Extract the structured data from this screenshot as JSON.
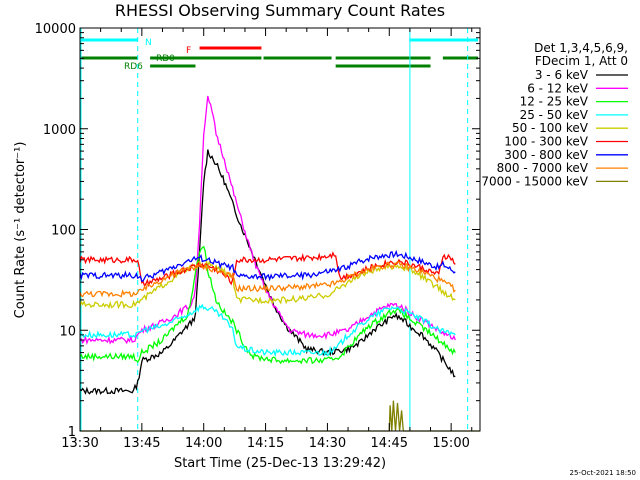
{
  "chart_data": {
    "type": "line",
    "title": "RHESSI Observing Summary Count Rates",
    "xlabel": "Start Time (25-Dec-13 13:29:42)",
    "ylabel": "Count Rate (s⁻¹ detector⁻¹)",
    "y_scale": "log",
    "ylim": [
      1,
      10000
    ],
    "xlim_minutes_after_1330": [
      0,
      97
    ],
    "x_ticks": [
      {
        "t": 0,
        "label": "13:30"
      },
      {
        "t": 15,
        "label": "13:45"
      },
      {
        "t": 30,
        "label": "14:00"
      },
      {
        "t": 45,
        "label": "14:15"
      },
      {
        "t": 60,
        "label": "14:30"
      },
      {
        "t": 75,
        "label": "14:45"
      },
      {
        "t": 90,
        "label": "15:00"
      }
    ],
    "y_ticks": [
      {
        "v": 1,
        "label": "1"
      },
      {
        "v": 10,
        "label": "10"
      },
      {
        "v": 100,
        "label": "100"
      },
      {
        "v": 1000,
        "label": "1000"
      },
      {
        "v": 10000,
        "label": "10000"
      }
    ],
    "legend_header": [
      "Det 1,3,4,5,6,9,",
      "FDecim 1, Att 0"
    ],
    "legend_position": "right",
    "series": [
      {
        "name": "3 - 6 keV",
        "color": "#000000",
        "points": [
          [
            0,
            2.5
          ],
          [
            13,
            2.5
          ],
          [
            14,
            3
          ],
          [
            15,
            5
          ],
          [
            20,
            6
          ],
          [
            23,
            8
          ],
          [
            25,
            10
          ],
          [
            27,
            12
          ],
          [
            28,
            14
          ],
          [
            29,
            60
          ],
          [
            30,
            300
          ],
          [
            31,
            600
          ],
          [
            33,
            450
          ],
          [
            35,
            300
          ],
          [
            37,
            180
          ],
          [
            39,
            110
          ],
          [
            41,
            70
          ],
          [
            43,
            45
          ],
          [
            45,
            28
          ],
          [
            47,
            18
          ],
          [
            50,
            11
          ],
          [
            53,
            8
          ],
          [
            55,
            6.5
          ],
          [
            60,
            6
          ],
          [
            65,
            6.5
          ],
          [
            68,
            7.5
          ],
          [
            71,
            10
          ],
          [
            74,
            12
          ],
          [
            76,
            14
          ],
          [
            78,
            13
          ],
          [
            80,
            11
          ],
          [
            83,
            9
          ],
          [
            86,
            6.5
          ],
          [
            89,
            4.5
          ],
          [
            91,
            3.5
          ]
        ]
      },
      {
        "name": "6 - 12 keV",
        "color": "#ff00ff",
        "points": [
          [
            0,
            8
          ],
          [
            13,
            8
          ],
          [
            14,
            9
          ],
          [
            15,
            10
          ],
          [
            20,
            12
          ],
          [
            23,
            14
          ],
          [
            25,
            16
          ],
          [
            27,
            18
          ],
          [
            28,
            25
          ],
          [
            29,
            120
          ],
          [
            30,
            900
          ],
          [
            31,
            2000
          ],
          [
            32,
            1500
          ],
          [
            33,
            900
          ],
          [
            35,
            500
          ],
          [
            37,
            250
          ],
          [
            39,
            130
          ],
          [
            41,
            70
          ],
          [
            43,
            40
          ],
          [
            45,
            25
          ],
          [
            47,
            18
          ],
          [
            49,
            13
          ],
          [
            51,
            10
          ],
          [
            55,
            9
          ],
          [
            60,
            9
          ],
          [
            65,
            10
          ],
          [
            70,
            14
          ],
          [
            74,
            17
          ],
          [
            76,
            18
          ],
          [
            78,
            17
          ],
          [
            81,
            14
          ],
          [
            84,
            12
          ],
          [
            87,
            10
          ],
          [
            91,
            8
          ]
        ]
      },
      {
        "name": "12 - 25 keV",
        "color": "#00ff00",
        "points": [
          [
            0,
            5.5
          ],
          [
            13,
            5.5
          ],
          [
            14,
            5
          ],
          [
            15,
            6
          ],
          [
            20,
            8
          ],
          [
            24,
            12
          ],
          [
            26,
            14
          ],
          [
            27,
            20
          ],
          [
            28,
            40
          ],
          [
            29,
            60
          ],
          [
            30,
            70
          ],
          [
            31,
            40
          ],
          [
            33,
            20
          ],
          [
            35,
            15
          ],
          [
            37,
            12
          ],
          [
            38,
            10
          ],
          [
            40,
            7
          ],
          [
            42,
            5.5
          ],
          [
            48,
            5
          ],
          [
            55,
            5
          ],
          [
            60,
            5
          ],
          [
            63,
            5.5
          ],
          [
            66,
            7.5
          ],
          [
            70,
            11
          ],
          [
            74,
            14
          ],
          [
            76,
            16
          ],
          [
            78,
            15
          ],
          [
            81,
            12
          ],
          [
            84,
            10
          ],
          [
            87,
            8
          ],
          [
            91,
            6
          ]
        ]
      },
      {
        "name": "25 - 50 keV",
        "color": "#00ffff",
        "points": [
          [
            0,
            9
          ],
          [
            13,
            9
          ],
          [
            14,
            9
          ],
          [
            15,
            10
          ],
          [
            20,
            11
          ],
          [
            24,
            13
          ],
          [
            27,
            15
          ],
          [
            29,
            17
          ],
          [
            30,
            17
          ],
          [
            32,
            16
          ],
          [
            35,
            13
          ],
          [
            37,
            10
          ],
          [
            38,
            7
          ],
          [
            40,
            6.5
          ],
          [
            45,
            6
          ],
          [
            55,
            6
          ],
          [
            60,
            6
          ],
          [
            62,
            6.5
          ],
          [
            65,
            9
          ],
          [
            70,
            13
          ],
          [
            74,
            16
          ],
          [
            76,
            17
          ],
          [
            78,
            16
          ],
          [
            81,
            14
          ],
          [
            84,
            12
          ],
          [
            87,
            10
          ],
          [
            91,
            9
          ]
        ]
      },
      {
        "name": "50 - 100 keV",
        "color": "#cccc00",
        "points": [
          [
            0,
            18
          ],
          [
            13,
            18
          ],
          [
            14,
            19
          ],
          [
            15,
            20
          ],
          [
            20,
            28
          ],
          [
            24,
            36
          ],
          [
            27,
            42
          ],
          [
            29,
            45
          ],
          [
            31,
            45
          ],
          [
            34,
            40
          ],
          [
            37,
            34
          ],
          [
            38,
            20
          ],
          [
            40,
            20
          ],
          [
            50,
            20
          ],
          [
            56,
            21
          ],
          [
            61,
            23
          ],
          [
            62,
            25
          ],
          [
            66,
            32
          ],
          [
            70,
            38
          ],
          [
            74,
            42
          ],
          [
            77,
            44
          ],
          [
            80,
            40
          ],
          [
            83,
            34
          ],
          [
            87,
            26
          ],
          [
            91,
            20
          ]
        ]
      },
      {
        "name": "100 - 300 keV",
        "color": "#ff0000",
        "points": [
          [
            0,
            50
          ],
          [
            13,
            50
          ],
          [
            14,
            50
          ],
          [
            15,
            28
          ],
          [
            20,
            33
          ],
          [
            24,
            38
          ],
          [
            27,
            42
          ],
          [
            29,
            45
          ],
          [
            31,
            44
          ],
          [
            34,
            38
          ],
          [
            37,
            30
          ],
          [
            38,
            50
          ],
          [
            45,
            50
          ],
          [
            55,
            52
          ],
          [
            60,
            55
          ],
          [
            62,
            58
          ],
          [
            63,
            33
          ],
          [
            68,
            38
          ],
          [
            72,
            44
          ],
          [
            76,
            48
          ],
          [
            78,
            48
          ],
          [
            81,
            44
          ],
          [
            84,
            40
          ],
          [
            87,
            35
          ],
          [
            88,
            55
          ],
          [
            90,
            52
          ],
          [
            91,
            45
          ]
        ]
      },
      {
        "name": "300 - 800 keV",
        "color": "#0000ff",
        "points": [
          [
            0,
            35
          ],
          [
            13,
            35
          ],
          [
            14,
            35
          ],
          [
            15,
            32
          ],
          [
            20,
            38
          ],
          [
            24,
            45
          ],
          [
            27,
            50
          ],
          [
            29,
            52
          ],
          [
            31,
            50
          ],
          [
            34,
            45
          ],
          [
            37,
            42
          ],
          [
            38,
            34
          ],
          [
            45,
            34
          ],
          [
            55,
            35
          ],
          [
            60,
            38
          ],
          [
            63,
            40
          ],
          [
            66,
            45
          ],
          [
            70,
            52
          ],
          [
            74,
            56
          ],
          [
            77,
            57
          ],
          [
            80,
            53
          ],
          [
            83,
            48
          ],
          [
            87,
            42
          ],
          [
            88,
            45
          ],
          [
            90,
            40
          ],
          [
            91,
            38
          ]
        ]
      },
      {
        "name": "800 - 7000 keV",
        "color": "#ff8000",
        "points": [
          [
            0,
            23
          ],
          [
            13,
            23
          ],
          [
            14,
            23
          ],
          [
            15,
            25
          ],
          [
            20,
            32
          ],
          [
            24,
            38
          ],
          [
            27,
            42
          ],
          [
            29,
            43
          ],
          [
            31,
            42
          ],
          [
            34,
            38
          ],
          [
            37,
            34
          ],
          [
            38,
            26
          ],
          [
            45,
            26
          ],
          [
            55,
            27
          ],
          [
            60,
            28
          ],
          [
            63,
            30
          ],
          [
            66,
            35
          ],
          [
            70,
            40
          ],
          [
            74,
            44
          ],
          [
            77,
            45
          ],
          [
            80,
            42
          ],
          [
            83,
            38
          ],
          [
            87,
            32
          ],
          [
            90,
            27
          ],
          [
            91,
            25
          ]
        ]
      },
      {
        "name": "7000 - 15000 keV",
        "color": "#808000",
        "points": [
          [
            0,
            1
          ],
          [
            75,
            1
          ],
          [
            75.2,
            1.8
          ],
          [
            75.6,
            1
          ],
          [
            76,
            2
          ],
          [
            76.5,
            1
          ],
          [
            77,
            1.9
          ],
          [
            77.5,
            1
          ],
          [
            78,
            1.6
          ],
          [
            78.4,
            1
          ],
          [
            97,
            1
          ]
        ]
      }
    ],
    "annotations": [
      {
        "text": "N",
        "color": "#00ffff"
      },
      {
        "text": "RD0",
        "color": "#008000"
      },
      {
        "text": "RD6",
        "color": "#008000"
      },
      {
        "text": "F",
        "color": "#ff0000"
      }
    ],
    "bars": {
      "N": {
        "color": "#00ffff",
        "segments": [
          [
            0,
            14
          ],
          [
            80,
            98
          ]
        ]
      },
      "F": {
        "color": "#ff0000",
        "segments": [
          [
            29,
            44
          ]
        ]
      },
      "RD0": {
        "color": "#008000",
        "segments": [
          [
            0,
            14
          ],
          [
            17,
            44
          ],
          [
            44.5,
            61
          ],
          [
            62,
            85
          ],
          [
            88,
            98
          ]
        ]
      }
    },
    "vlines": [
      {
        "t": 14,
        "color": "#00ffff",
        "dashed": true
      },
      {
        "t": 80,
        "color": "#00ffff",
        "dashed": false
      },
      {
        "t": 94,
        "color": "#00ffff",
        "dashed": true
      }
    ]
  },
  "footer": {
    "timestamp": "25-Oct-2021 18:50"
  }
}
